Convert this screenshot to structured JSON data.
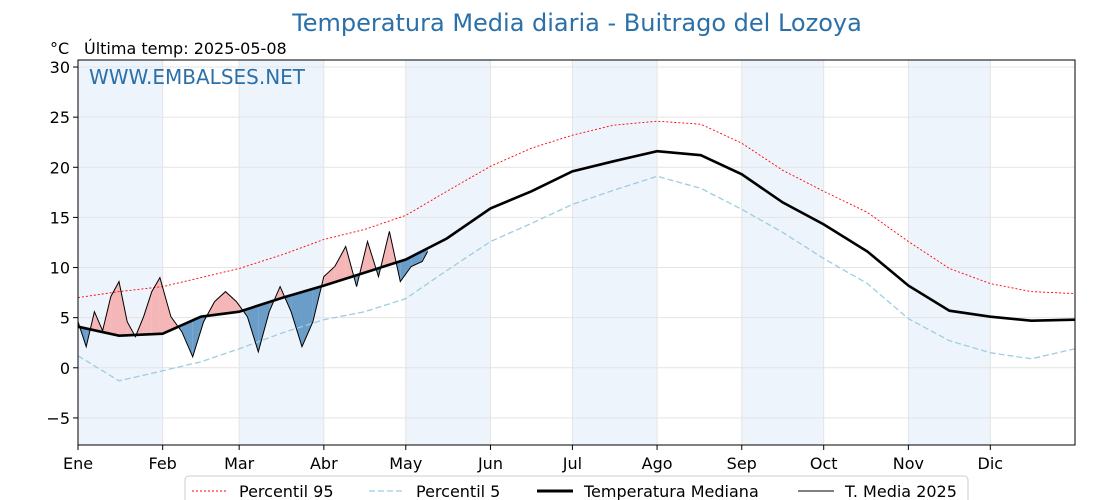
{
  "chart_data": {
    "type": "line",
    "title": "Temperatura Media diaria - Buitrago del Lozoya",
    "unit_label": "°C",
    "last_temp_label": "Última temp: 2025-05-08",
    "watermark": "WWW.EMBALSES.NET",
    "x_tick_labels": [
      "Ene",
      "Feb",
      "Mar",
      "Abr",
      "May",
      "Jun",
      "Jul",
      "Ago",
      "Sep",
      "Oct",
      "Nov",
      "Dic"
    ],
    "month_start_days": [
      0,
      31,
      59,
      90,
      120,
      151,
      181,
      212,
      243,
      273,
      304,
      334
    ],
    "x_range": [
      0,
      365
    ],
    "ylim": [
      -7.7,
      30.7
    ],
    "y_ticks": [
      -5,
      0,
      5,
      10,
      15,
      20,
      25,
      30
    ],
    "grid": true,
    "legend_position": "bottom",
    "colors": {
      "p95": "#ff0000",
      "p5": "#9ecde0",
      "median": "#000000",
      "current": "#000000",
      "above_fill": "#f4b6b6",
      "below_fill": "#6b9dc9",
      "band": "#eef4fb",
      "title": "#2b70a8"
    },
    "series": [
      {
        "name": "Percentil 95",
        "x": [
          0,
          15,
          31,
          45,
          59,
          75,
          90,
          105,
          120,
          135,
          151,
          166,
          181,
          196,
          212,
          228,
          243,
          258,
          273,
          289,
          304,
          319,
          334,
          349,
          365
        ],
        "y": [
          7.0,
          7.6,
          8.1,
          9.0,
          9.9,
          11.3,
          12.8,
          13.8,
          15.2,
          17.6,
          20.1,
          21.9,
          23.2,
          24.2,
          24.6,
          24.3,
          22.4,
          19.7,
          17.6,
          15.5,
          12.6,
          9.9,
          8.4,
          7.6,
          7.4
        ]
      },
      {
        "name": "Percentil 5",
        "x": [
          0,
          15,
          31,
          45,
          59,
          75,
          90,
          105,
          120,
          135,
          151,
          166,
          181,
          196,
          212,
          228,
          243,
          258,
          273,
          289,
          304,
          319,
          334,
          349,
          365
        ],
        "y": [
          1.2,
          -1.3,
          -0.3,
          0.6,
          1.9,
          3.5,
          4.8,
          5.6,
          6.9,
          9.7,
          12.6,
          14.4,
          16.3,
          17.7,
          19.1,
          17.9,
          15.8,
          13.5,
          10.9,
          8.4,
          4.9,
          2.7,
          1.5,
          0.9,
          1.9
        ]
      },
      {
        "name": "Temperatura Mediana",
        "x": [
          0,
          15,
          31,
          45,
          59,
          75,
          90,
          105,
          120,
          135,
          151,
          166,
          181,
          196,
          212,
          228,
          243,
          258,
          273,
          289,
          304,
          319,
          334,
          349,
          365
        ],
        "y": [
          4.1,
          3.2,
          3.4,
          5.1,
          5.6,
          7.0,
          8.2,
          9.5,
          10.8,
          12.9,
          15.9,
          17.6,
          19.6,
          20.6,
          21.6,
          21.2,
          19.3,
          16.5,
          14.3,
          11.6,
          8.2,
          5.7,
          5.1,
          4.7,
          4.8
        ]
      },
      {
        "name": "T. Media 2025",
        "x": [
          0,
          3,
          6,
          9,
          12,
          15,
          18,
          21,
          24,
          27,
          30,
          34,
          38,
          42,
          46,
          50,
          54,
          58,
          62,
          66,
          70,
          74,
          78,
          82,
          86,
          90,
          94,
          98,
          102,
          106,
          110,
          114,
          118,
          122,
          126,
          128
        ],
        "y": [
          4.6,
          2.1,
          5.6,
          3.7,
          7.1,
          8.6,
          4.6,
          3.1,
          5.1,
          7.6,
          9.0,
          5.1,
          3.6,
          1.1,
          4.6,
          6.6,
          7.6,
          6.6,
          5.1,
          1.6,
          5.6,
          8.1,
          5.6,
          2.1,
          4.6,
          9.1,
          10.1,
          12.1,
          8.1,
          12.6,
          9.1,
          13.6,
          8.6,
          10.1,
          10.6,
          11.6
        ]
      }
    ]
  },
  "legend": {
    "items": [
      {
        "label": "Percentil 95"
      },
      {
        "label": "Percentil 5"
      },
      {
        "label": "Temperatura Mediana"
      },
      {
        "label": "T. Media 2025"
      }
    ]
  }
}
